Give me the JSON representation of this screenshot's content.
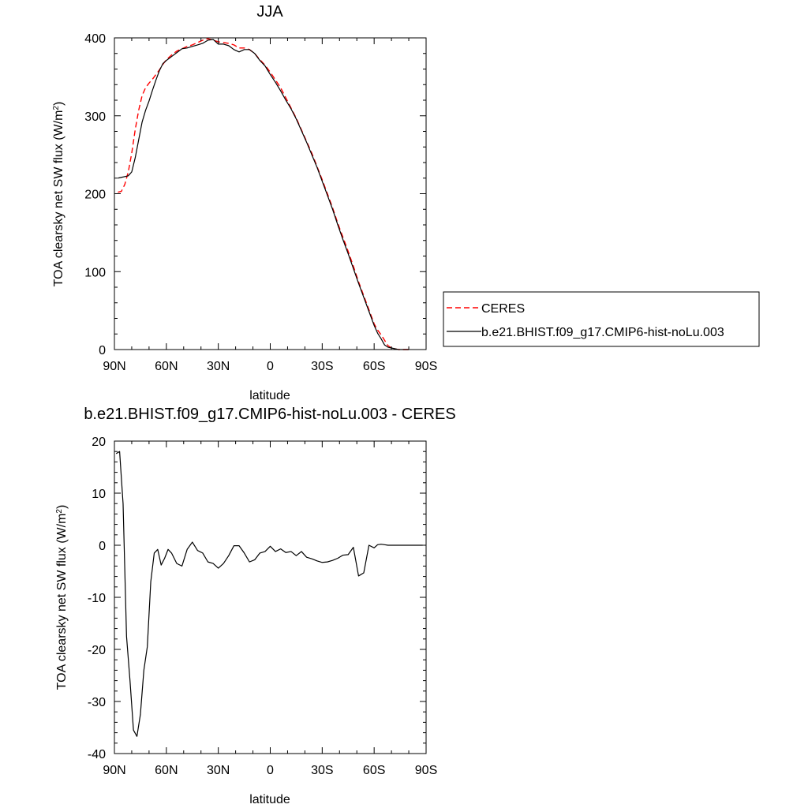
{
  "chart_data": [
    {
      "type": "line",
      "title": "JJA",
      "xlabel": "latitude",
      "ylabel_main": "TOA clearsky net SW flux (W/m",
      "ylabel_sup": "2",
      "ylabel_close": ")",
      "xlim": [
        90,
        -90
      ],
      "ylim": [
        0,
        400
      ],
      "xticks": [
        90,
        60,
        30,
        0,
        -30,
        -60,
        -90
      ],
      "xtick_labels": [
        "90N",
        "60N",
        "30N",
        "0",
        "30S",
        "60S",
        "90S"
      ],
      "yticks": [
        0,
        100,
        200,
        300,
        400
      ],
      "ytick_labels": [
        "0",
        "100",
        "200",
        "300",
        "400"
      ],
      "legend_position": "right",
      "series": [
        {
          "name": "CERES",
          "color": "#ff0000",
          "dash": "dashed",
          "x": [
            88,
            86,
            84,
            82,
            80,
            78,
            76,
            74,
            72,
            70,
            68,
            66,
            64,
            62,
            60,
            57,
            54,
            51,
            48,
            45,
            42,
            39,
            36,
            33,
            30,
            27,
            24,
            21,
            18,
            15,
            12,
            9,
            6,
            3,
            0,
            -3,
            -6,
            -9,
            -12,
            -15,
            -18,
            -21,
            -24,
            -27,
            -30,
            -33,
            -36,
            -39,
            -42,
            -45,
            -48,
            -51,
            -54,
            -57,
            -60,
            -62,
            -64,
            -66,
            -68,
            -70,
            -72,
            -74,
            -76,
            -78,
            -80
          ],
          "y": [
            202,
            203,
            212,
            228,
            252,
            282,
            307,
            326,
            336,
            342,
            347,
            353,
            359,
            366,
            372,
            378,
            383,
            386,
            389,
            391,
            394,
            397,
            399,
            397,
            395,
            394,
            393,
            391,
            387,
            387,
            385,
            380,
            372,
            365,
            356,
            346,
            336,
            323,
            310,
            297,
            282,
            267,
            252,
            235,
            218,
            200,
            182,
            162,
            144,
            126,
            107,
            87,
            69,
            51,
            33,
            25,
            19,
            12,
            5,
            2,
            1,
            0,
            0,
            0,
            0
          ]
        },
        {
          "name": "b.e21.BHIST.f09_g17.CMIP6-hist-noLu.003",
          "color": "#000000",
          "dash": "solid",
          "x": [
            88,
            86,
            84,
            82,
            80,
            78,
            76,
            74,
            72,
            70,
            68,
            66,
            64,
            62,
            60,
            57,
            54,
            51,
            48,
            45,
            42,
            39,
            36,
            33,
            30,
            27,
            24,
            21,
            18,
            15,
            12,
            9,
            6,
            3,
            0,
            -3,
            -6,
            -9,
            -12,
            -15,
            -18,
            -21,
            -24,
            -27,
            -30,
            -33,
            -36,
            -39,
            -42,
            -45,
            -48,
            -51,
            -54,
            -57,
            -60,
            -62,
            -64,
            -66,
            -68,
            -70,
            -72,
            -74,
            -76,
            -78,
            -80
          ],
          "y": [
            220,
            221,
            222,
            223,
            228,
            246,
            269,
            292,
            307,
            319,
            333,
            346,
            358,
            367,
            371,
            376,
            381,
            386,
            387,
            389,
            391,
            393,
            397,
            398,
            392,
            392,
            390,
            385,
            382,
            385,
            385,
            380,
            371,
            364,
            353,
            343,
            332,
            320,
            309,
            296,
            281,
            266,
            250,
            234,
            216,
            198,
            180,
            160,
            141,
            123,
            104,
            85,
            67,
            49,
            31,
            21,
            14,
            6,
            3,
            2,
            1,
            0,
            0,
            0,
            0
          ]
        }
      ]
    },
    {
      "type": "line",
      "title": "b.e21.BHIST.f09_g17.CMIP6-hist-noLu.003 - CERES",
      "xlabel": "latitude",
      "ylabel_main": "TOA clearsky net SW flux (W/m",
      "ylabel_sup": "2",
      "ylabel_close": ")",
      "xlim": [
        90,
        -90
      ],
      "ylim": [
        -40,
        20
      ],
      "xticks": [
        90,
        60,
        30,
        0,
        -30,
        -60,
        -90
      ],
      "xtick_labels": [
        "90N",
        "60N",
        "30N",
        "0",
        "30S",
        "60S",
        "90S"
      ],
      "yticks": [
        -40,
        -30,
        -20,
        -10,
        0,
        10,
        20
      ],
      "ytick_labels": [
        "-40",
        "-30",
        "-20",
        "-10",
        "0",
        "10",
        "20"
      ],
      "series": [
        {
          "color": "#000000",
          "dash": "solid",
          "x": [
            89,
            87,
            85,
            83,
            81,
            79,
            77,
            75,
            73,
            71,
            69,
            67,
            65,
            63,
            61,
            59,
            57,
            54,
            51,
            48,
            45,
            42,
            39,
            36,
            33,
            30,
            27,
            24,
            21,
            18,
            15,
            12,
            9,
            6,
            3,
            0,
            -3,
            -6,
            -9,
            -12,
            -15,
            -18,
            -21,
            -24,
            -27,
            -30,
            -33,
            -36,
            -39,
            -42,
            -45,
            -48,
            -51,
            -54,
            -57,
            -60,
            -62,
            -64,
            -66,
            -68,
            -70,
            -72,
            -74,
            -76,
            -78,
            -80,
            -82,
            -84,
            -86,
            -88
          ],
          "y": [
            17.6,
            18.0,
            8.0,
            -17.5,
            -26.0,
            -35.5,
            -36.7,
            -32.5,
            -24.0,
            -19.5,
            -7.0,
            -1.5,
            -0.8,
            -3.8,
            -2.5,
            -0.8,
            -1.5,
            -3.5,
            -4.0,
            -0.8,
            0.6,
            -1.0,
            -1.5,
            -3.2,
            -3.5,
            -4.4,
            -3.5,
            -2.0,
            -0.1,
            -0.1,
            -1.5,
            -3.2,
            -2.8,
            -1.5,
            -1.2,
            -0.2,
            -1.2,
            -0.7,
            -1.4,
            -1.2,
            -2.0,
            -1.2,
            -2.3,
            -2.6,
            -3.0,
            -3.3,
            -3.2,
            -2.9,
            -2.5,
            -1.9,
            -1.8,
            -0.4,
            -5.9,
            -5.3,
            0.0,
            -0.5,
            0.1,
            0.2,
            0.1,
            0.0,
            0.0,
            0.0,
            0.0,
            0.0,
            0.0,
            0.0,
            0.0,
            0.0,
            0.0,
            0.0
          ]
        }
      ]
    }
  ]
}
